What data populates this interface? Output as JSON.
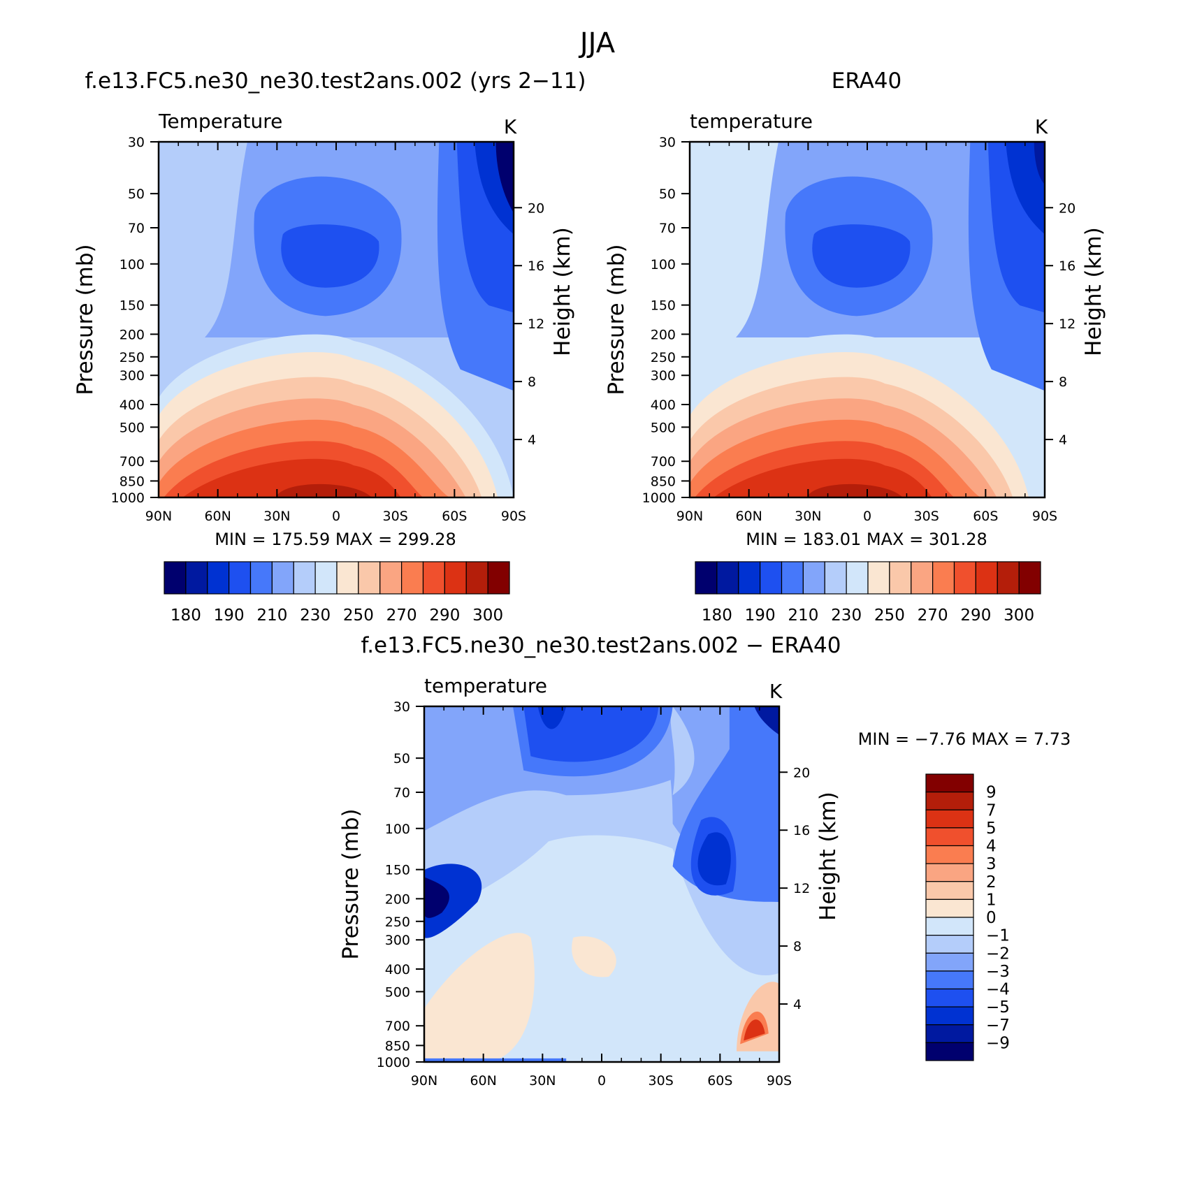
{
  "title": "JJA",
  "panels": [
    {
      "subtitle": "f.e13.FC5.ne30_ne30.test2ans.002 (yrs 2−11)",
      "variable": "Temperature",
      "units": "K",
      "stats": "MIN = 175.59   MAX = 299.28",
      "kind": "abs"
    },
    {
      "subtitle": "ERA40",
      "variable": "temperature",
      "units": "K",
      "stats": "MIN = 183.01   MAX = 301.28",
      "kind": "abs"
    },
    {
      "subtitle": "f.e13.FC5.ne30_ne30.test2ans.002 − ERA40",
      "variable": "temperature",
      "units": "K",
      "stats": "MIN =  −7.76   MAX =    7.73",
      "kind": "diff"
    }
  ],
  "axes": {
    "ylabel_left": "Pressure (mb)",
    "ylabel_right": "Height (km)",
    "lat_ticks": [
      "90N",
      "60N",
      "30N",
      "0",
      "30S",
      "60S",
      "90S"
    ],
    "pressure_ticks": [
      "30",
      "50",
      "70",
      "100",
      "150",
      "200",
      "250",
      "300",
      "400",
      "500",
      "700",
      "850",
      "1000"
    ],
    "height_ticks": [
      "20",
      "16",
      "12",
      "8",
      "4"
    ]
  },
  "colorbars": {
    "abs": {
      "colors": [
        "#00006e",
        "#0019a0",
        "#0032d2",
        "#1e50f0",
        "#4678fa",
        "#82a5fa",
        "#b4cdfa",
        "#d2e6fa",
        "#fae6d2",
        "#fac8aa",
        "#faa582",
        "#fa7d50",
        "#f0502d",
        "#dc3214",
        "#b41e0a",
        "#820000"
      ],
      "labels": [
        "180",
        "190",
        "210",
        "230",
        "250",
        "270",
        "290",
        "300"
      ]
    },
    "diff": {
      "colors": [
        "#820000",
        "#b41e0a",
        "#dc3214",
        "#f0502d",
        "#fa7d50",
        "#faa582",
        "#fac8aa",
        "#fae6d2",
        "#d2e6fa",
        "#b4cdfa",
        "#82a5fa",
        "#4678fa",
        "#1e50f0",
        "#0032d2",
        "#0019a0",
        "#00006e"
      ],
      "labels": [
        "9",
        "7",
        "5",
        "4",
        "3",
        "2",
        "1",
        "0",
        "−1",
        "−2",
        "−3",
        "−4",
        "−5",
        "−7",
        "−9"
      ]
    }
  },
  "chart_data": [
    {
      "type": "heatmap",
      "title": "f.e13.FC5.ne30_ne30.test2ans.002 (yrs 2−11)",
      "variable": "Temperature",
      "units": "K",
      "x": [
        "90N",
        "60N",
        "30N",
        "0",
        "30S",
        "60S",
        "90S"
      ],
      "y_pressure_mb": [
        30,
        50,
        70,
        100,
        150,
        200,
        250,
        300,
        400,
        500,
        700,
        850,
        1000
      ],
      "min": 175.59,
      "max": 299.28
    },
    {
      "type": "heatmap",
      "title": "ERA40",
      "variable": "temperature",
      "units": "K",
      "x": [
        "90N",
        "60N",
        "30N",
        "0",
        "30S",
        "60S",
        "90S"
      ],
      "y_pressure_mb": [
        30,
        50,
        70,
        100,
        150,
        200,
        250,
        300,
        400,
        500,
        700,
        850,
        1000
      ],
      "min": 183.01,
      "max": 301.28
    },
    {
      "type": "heatmap",
      "title": "f.e13.FC5.ne30_ne30.test2ans.002 − ERA40",
      "variable": "temperature",
      "units": "K",
      "x": [
        "90N",
        "60N",
        "30N",
        "0",
        "30S",
        "60S",
        "90S"
      ],
      "y_pressure_mb": [
        30,
        50,
        70,
        100,
        150,
        200,
        250,
        300,
        400,
        500,
        700,
        850,
        1000
      ],
      "min": -7.76,
      "max": 7.73
    }
  ]
}
